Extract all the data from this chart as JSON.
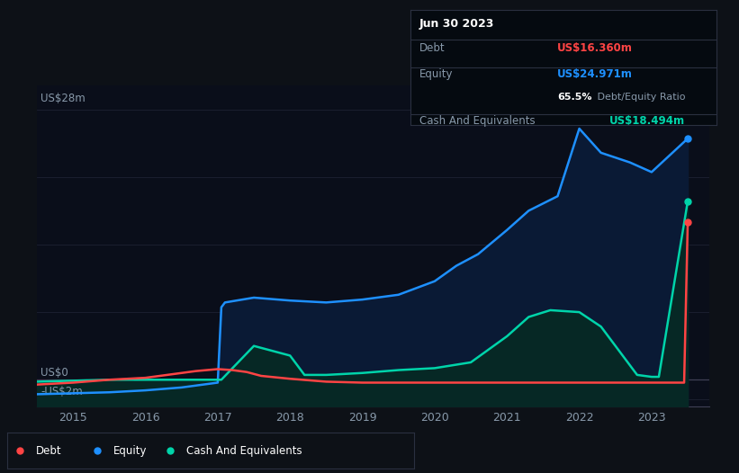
{
  "bg_color": "#0d1117",
  "plot_bg_color": "#0a0e1a",
  "grid_color": "#1e2233",
  "equity_color": "#1e90ff",
  "equity_fill": "#0a1a35",
  "cash_color": "#00d4aa",
  "cash_fill": "#062825",
  "debt_color": "#ff4444",
  "ylim": [
    -2.8,
    30.5
  ],
  "xlim": [
    2014.5,
    2023.8
  ],
  "x_ticks": [
    2015,
    2016,
    2017,
    2018,
    2019,
    2020,
    2021,
    2022,
    2023
  ],
  "y_gridlines": [
    28,
    21,
    14,
    7,
    0,
    -2
  ],
  "debt_x": [
    2014.5,
    2015.0,
    2015.5,
    2016.0,
    2016.3,
    2016.7,
    2017.0,
    2017.2,
    2017.4,
    2017.6,
    2018.0,
    2018.5,
    2019.0,
    2019.5,
    2020.0,
    2020.5,
    2021.0,
    2021.5,
    2022.0,
    2022.3,
    2022.6,
    2022.9,
    2023.0,
    2023.45,
    2023.5
  ],
  "debt_y": [
    -0.5,
    -0.3,
    0.0,
    0.2,
    0.5,
    0.9,
    1.1,
    1.0,
    0.8,
    0.4,
    0.1,
    -0.2,
    -0.3,
    -0.3,
    -0.3,
    -0.3,
    -0.3,
    -0.3,
    -0.3,
    -0.3,
    -0.3,
    -0.3,
    -0.3,
    -0.3,
    16.36
  ],
  "equity_x": [
    2014.5,
    2015.0,
    2015.5,
    2016.0,
    2016.5,
    2017.0,
    2017.05,
    2017.1,
    2017.5,
    2018.0,
    2018.5,
    2019.0,
    2019.5,
    2020.0,
    2020.3,
    2020.6,
    2021.0,
    2021.3,
    2021.7,
    2022.0,
    2022.3,
    2022.7,
    2023.0,
    2023.5
  ],
  "equity_y": [
    -1.5,
    -1.4,
    -1.3,
    -1.1,
    -0.8,
    -0.3,
    7.5,
    8.0,
    8.5,
    8.2,
    8.0,
    8.3,
    8.8,
    10.2,
    11.8,
    13.0,
    15.5,
    17.5,
    19.0,
    26.0,
    23.5,
    22.5,
    21.5,
    24.971
  ],
  "cash_x": [
    2014.5,
    2015.0,
    2015.5,
    2016.0,
    2016.5,
    2017.0,
    2017.05,
    2017.5,
    2018.0,
    2018.2,
    2018.5,
    2019.0,
    2019.5,
    2020.0,
    2020.5,
    2021.0,
    2021.3,
    2021.6,
    2022.0,
    2022.3,
    2022.8,
    2023.0,
    2023.1,
    2023.5
  ],
  "cash_y": [
    -0.2,
    -0.1,
    0.0,
    0.0,
    0.0,
    0.0,
    0.0,
    3.5,
    2.5,
    0.5,
    0.5,
    0.7,
    1.0,
    1.2,
    1.8,
    4.5,
    6.5,
    7.2,
    7.0,
    5.5,
    0.5,
    0.3,
    0.3,
    18.494
  ],
  "legend": [
    {
      "label": "Debt",
      "color": "#ff4444"
    },
    {
      "label": "Equity",
      "color": "#1e90ff"
    },
    {
      "label": "Cash And Equivalents",
      "color": "#00d4aa"
    }
  ],
  "tooltip": {
    "date": "Jun 30 2023",
    "debt_label": "Debt",
    "debt_value": "US$16.360m",
    "equity_label": "Equity",
    "equity_value": "US$24.971m",
    "ratio_bold": "65.5%",
    "ratio_rest": " Debt/Equity Ratio",
    "cash_label": "Cash And Equivalents",
    "cash_value": "US$18.494m"
  }
}
